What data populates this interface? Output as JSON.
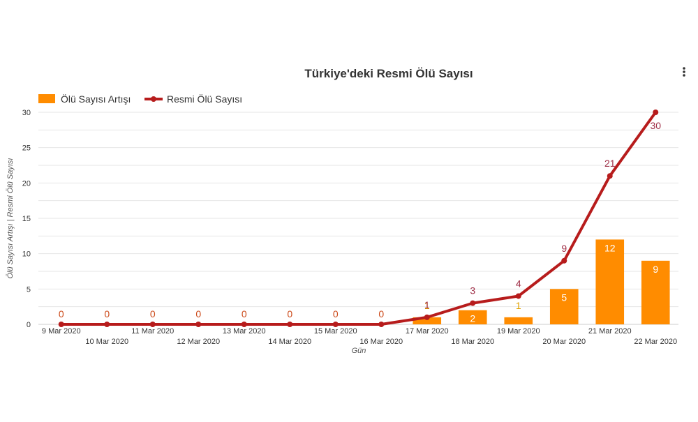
{
  "chart_data": {
    "type": "bar+line",
    "title": "Türkiye'deki Resmi Ölü Sayısı",
    "xlabel": "Gün",
    "ylabel": "Ölü Sayısı Artışı | Resmi Ölü Sayısı",
    "ylim": [
      0,
      30
    ],
    "yticks": [
      0,
      5,
      10,
      15,
      20,
      25,
      30
    ],
    "grid": true,
    "legend_position": "top-left",
    "categories": [
      "9 Mar 2020",
      "10 Mar 2020",
      "11 Mar 2020",
      "12 Mar 2020",
      "13 Mar 2020",
      "14 Mar 2020",
      "15 Mar 2020",
      "16 Mar 2020",
      "17 Mar 2020",
      "18 Mar 2020",
      "19 Mar 2020",
      "20 Mar 2020",
      "21 Mar 2020",
      "22 Mar 2020"
    ],
    "series": [
      {
        "name": "Ölü Sayısı Artışı",
        "type": "bar",
        "color": "#ff8c00",
        "values": [
          0,
          0,
          0,
          0,
          0,
          0,
          0,
          0,
          1,
          2,
          1,
          5,
          12,
          9
        ]
      },
      {
        "name": "Resmi Ölü Sayısı",
        "type": "line",
        "color": "#b71c1c",
        "values": [
          0,
          0,
          0,
          0,
          0,
          0,
          0,
          0,
          1,
          3,
          4,
          9,
          21,
          30
        ]
      }
    ]
  },
  "menu": {
    "icon": "kebab-menu-icon"
  }
}
